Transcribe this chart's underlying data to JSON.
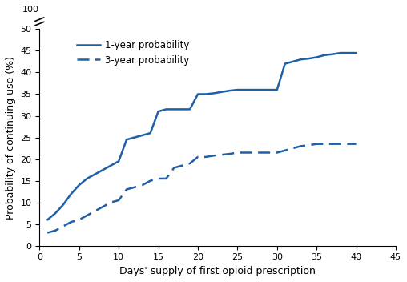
{
  "title": "",
  "xlabel": "Days' supply of first opioid prescription",
  "ylabel": "Probability of continuing use (%)",
  "line_color": "#1F5FA6",
  "xlim": [
    0,
    45
  ],
  "ylim": [
    0,
    50
  ],
  "yticks": [
    0,
    5,
    10,
    15,
    20,
    25,
    30,
    35,
    40,
    45,
    50
  ],
  "ytick_labels": [
    "0",
    "5",
    "10",
    "15",
    "20",
    "25",
    "30",
    "35",
    "40",
    "45",
    "50"
  ],
  "xticks": [
    0,
    5,
    10,
    15,
    20,
    25,
    30,
    35,
    40,
    45
  ],
  "one_year_x": [
    1,
    2,
    3,
    4,
    5,
    6,
    7,
    8,
    9,
    10,
    11,
    12,
    13,
    14,
    15,
    16,
    17,
    18,
    19,
    20,
    21,
    22,
    23,
    24,
    25,
    26,
    27,
    28,
    29,
    30,
    31,
    32,
    33,
    34,
    35,
    36,
    37,
    38,
    39,
    40
  ],
  "one_year_y": [
    6.0,
    7.5,
    9.5,
    12.0,
    14.0,
    15.5,
    16.5,
    17.5,
    18.5,
    19.5,
    24.5,
    25.0,
    25.5,
    26.0,
    31.0,
    31.5,
    31.5,
    31.5,
    31.5,
    35.0,
    35.0,
    35.2,
    35.5,
    35.8,
    36.0,
    36.0,
    36.0,
    36.0,
    36.0,
    36.0,
    42.0,
    42.5,
    43.0,
    43.2,
    43.5,
    44.0,
    44.2,
    44.5,
    44.5,
    44.5
  ],
  "three_year_x": [
    1,
    2,
    3,
    4,
    5,
    6,
    7,
    8,
    9,
    10,
    11,
    12,
    13,
    14,
    15,
    16,
    17,
    18,
    19,
    20,
    21,
    22,
    23,
    24,
    25,
    26,
    27,
    28,
    29,
    30,
    31,
    32,
    33,
    34,
    35,
    36,
    37,
    38,
    39,
    40
  ],
  "three_year_y": [
    3.0,
    3.5,
    4.5,
    5.5,
    6.0,
    7.0,
    8.0,
    9.0,
    10.0,
    10.5,
    13.0,
    13.5,
    14.0,
    15.0,
    15.5,
    15.5,
    18.0,
    18.5,
    19.0,
    20.5,
    20.5,
    20.8,
    21.0,
    21.2,
    21.5,
    21.5,
    21.5,
    21.5,
    21.5,
    21.5,
    22.0,
    22.5,
    23.0,
    23.2,
    23.5,
    23.5,
    23.5,
    23.5,
    23.5,
    23.5
  ],
  "legend_labels": [
    "1-year probability",
    "3-year probability"
  ],
  "background_color": "#ffffff"
}
